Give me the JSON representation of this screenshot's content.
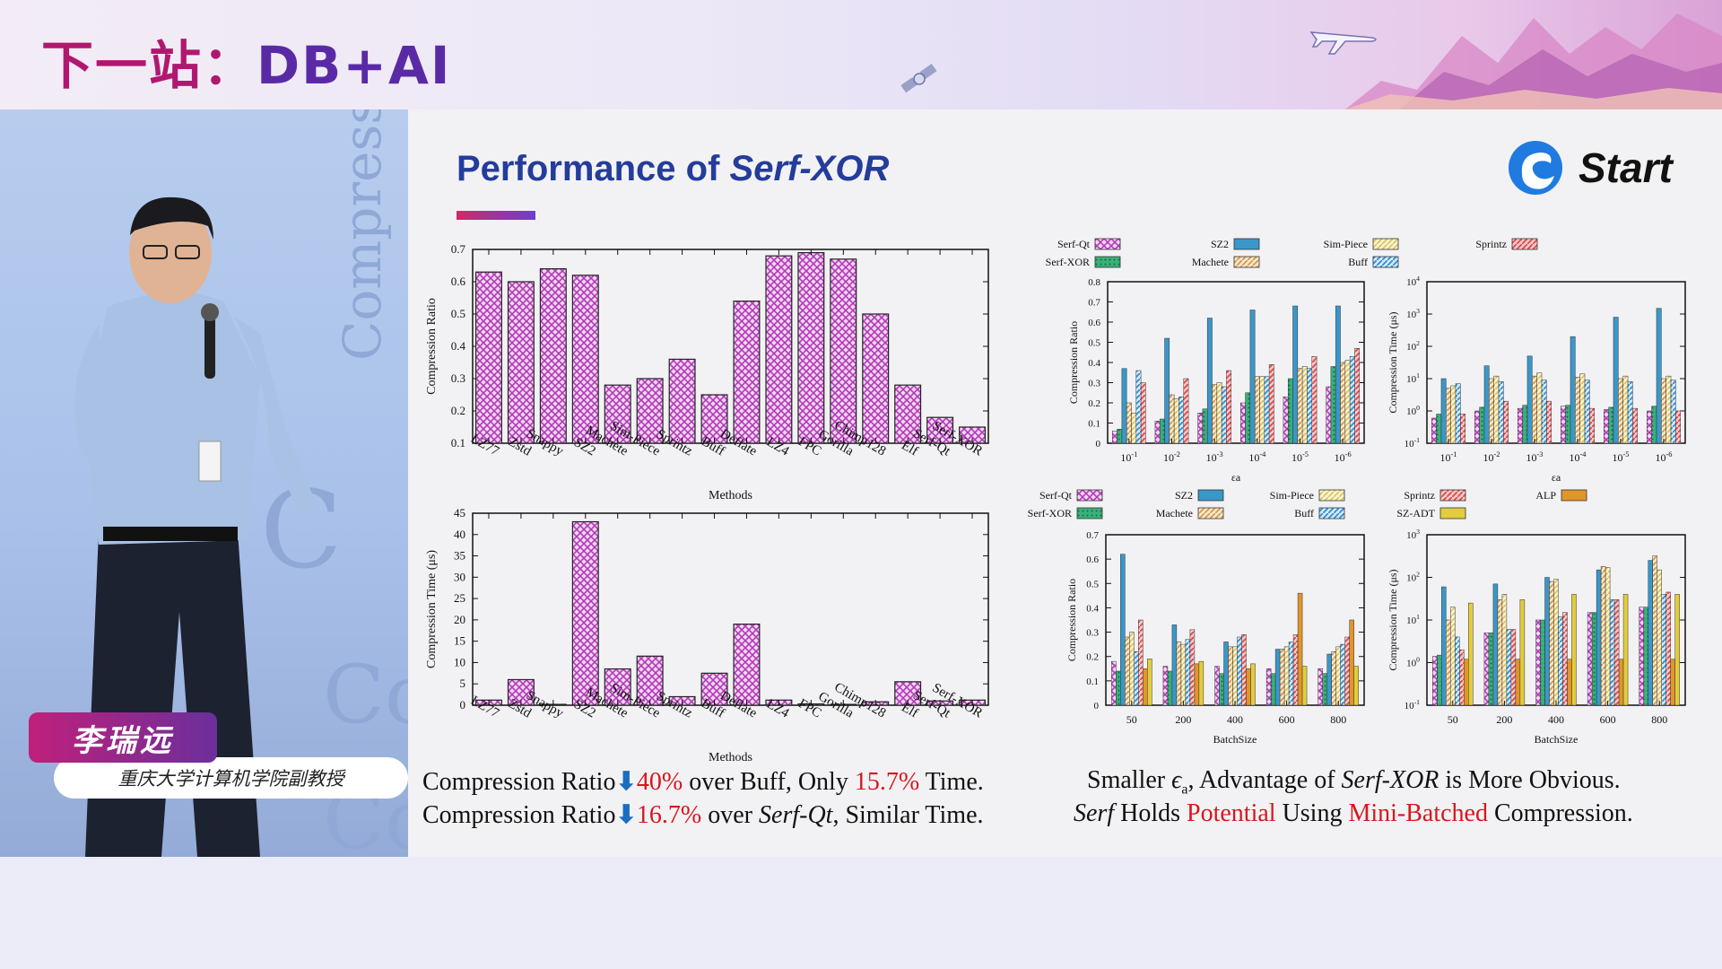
{
  "banner": {
    "title_prefix": "下一站：",
    "title_suffix": "DB+AI"
  },
  "speaker": {
    "name": "李瑞远",
    "title": "重庆大学计算机学院副教授"
  },
  "video": {
    "bg_word": "Compression"
  },
  "slide": {
    "title_prefix": "Performance of ",
    "title_italic": "Serf-XOR",
    "logo_text": "Start"
  },
  "captions": {
    "left1": {
      "a": "Compression Ratio",
      "b": "40%",
      "c": " over Buff, Only ",
      "d": "15.7%",
      "e": " Time."
    },
    "left2": {
      "a": "Compression Ratio",
      "b": "16.7%",
      "c": " over ",
      "d": "Serf-Qt",
      "e": ", Similar Time."
    },
    "right1": {
      "a": "Smaller ",
      "b": "ϵ",
      "b2": "a",
      "c": ", Advantage of ",
      "d": "Serf-XOR",
      "e": " is More Obvious."
    },
    "right2": {
      "a": "Serf",
      "b": " Holds ",
      "c": "Potential",
      "d": " Using ",
      "e": "Mini-Batched",
      "f": " Compression."
    }
  },
  "colors": {
    "magenta": "#b33ab7",
    "blue": "#3a97c9",
    "cream": "#f0e19a",
    "red": "#e0484b",
    "green": "#3ab07a",
    "tan": "#e7b77a",
    "hatchblue": "#2e8fd4",
    "orange": "#e0962b",
    "yellow": "#e3cc3d"
  },
  "chart_data": [
    {
      "type": "bar",
      "id": "ratio-methods",
      "xlabel": "Methods",
      "ylabel": "Compression Ratio",
      "ylim": [
        0.1,
        0.7
      ],
      "yticks": [
        "0.1",
        "0.2",
        "0.3",
        "0.4",
        "0.5",
        "0.6",
        "0.7"
      ],
      "categories": [
        "LZ77",
        "Zstd",
        "Snappy",
        "SZ2",
        "Machete",
        "Sim-Piece",
        "Sprintz",
        "Buff",
        "Deflate",
        "LZ4",
        "FPC",
        "Gorilla",
        "Chimp128",
        "Elf",
        "Serf-Qt",
        "Serf-XOR"
      ],
      "values": [
        0.63,
        0.6,
        0.64,
        0.62,
        0.28,
        0.3,
        0.36,
        0.25,
        0.54,
        0.68,
        0.69,
        0.67,
        0.5,
        0.28,
        0.18,
        0.15
      ]
    },
    {
      "type": "bar",
      "id": "time-methods",
      "xlabel": "Methods",
      "ylabel": "Compression Time (μs)",
      "ylim": [
        0,
        45
      ],
      "yticks": [
        "0",
        "5",
        "10",
        "15",
        "20",
        "25",
        "30",
        "35",
        "40",
        "45"
      ],
      "categories": [
        "LZ77",
        "Zstd",
        "Snappy",
        "SZ2",
        "Machete",
        "Sim-Piece",
        "Sprintz",
        "Buff",
        "Deflate",
        "LZ4",
        "FPC",
        "Gorilla",
        "Chimp128",
        "Elf",
        "Serf-Qt",
        "Serf-XOR"
      ],
      "values": [
        1.2,
        6,
        0.2,
        43,
        8.5,
        11.5,
        2,
        7.5,
        19,
        1.2,
        0.3,
        0.2,
        0.8,
        5.5,
        1,
        1.2
      ]
    },
    {
      "type": "bar",
      "id": "ratio-epsilon",
      "xlabel": "εa",
      "ylabel": "Compression Ratio",
      "ylim": [
        0,
        0.8
      ],
      "yticks": [
        "0",
        "0.1",
        "0.2",
        "0.3",
        "0.4",
        "0.5",
        "0.6",
        "0.7",
        "0.8"
      ],
      "categories": [
        "10-1",
        "10-2",
        "10-3",
        "10-4",
        "10-5",
        "10-6"
      ],
      "legend": [
        {
          "name": "Serf-Qt",
          "color": "magenta",
          "hatch": "cross"
        },
        {
          "name": "SZ2",
          "color": "blue",
          "hatch": "none"
        },
        {
          "name": "Sim-Piece",
          "color": "cream",
          "hatch": "diag"
        },
        {
          "name": "Sprintz",
          "color": "red",
          "hatch": "diag"
        },
        {
          "name": "Serf-XOR",
          "color": "green",
          "hatch": "dots"
        },
        {
          "name": "Machete",
          "color": "tan",
          "hatch": "diag"
        },
        {
          "name": "Buff",
          "color": "hatchblue",
          "hatch": "diag"
        }
      ],
      "series": [
        {
          "name": "Serf-Qt",
          "values": [
            0.06,
            0.11,
            0.15,
            0.2,
            0.23,
            0.28
          ]
        },
        {
          "name": "Serf-XOR",
          "values": [
            0.07,
            0.12,
            0.17,
            0.25,
            0.32,
            0.38
          ]
        },
        {
          "name": "SZ2",
          "values": [
            0.37,
            0.52,
            0.62,
            0.66,
            0.68,
            0.68
          ]
        },
        {
          "name": "Machete",
          "values": [
            0.2,
            0.24,
            0.29,
            0.33,
            0.37,
            0.4
          ]
        },
        {
          "name": "Sim-Piece",
          "values": [
            0.15,
            0.22,
            0.3,
            0.33,
            0.38,
            0.41
          ]
        },
        {
          "name": "Buff",
          "values": [
            0.36,
            0.23,
            0.28,
            0.33,
            0.37,
            0.43
          ]
        },
        {
          "name": "Sprintz",
          "values": [
            0.3,
            0.32,
            0.36,
            0.39,
            0.43,
            0.47
          ]
        }
      ]
    },
    {
      "type": "bar",
      "id": "time-epsilon",
      "xlabel": "εa",
      "ylabel": "Compression Time (μs)",
      "scale": "log",
      "ylim": [
        0.1,
        10000
      ],
      "yticks": [
        "10-1",
        "100",
        "101",
        "102",
        "103",
        "104"
      ],
      "categories": [
        "10-1",
        "10-2",
        "10-3",
        "10-4",
        "10-5",
        "10-6"
      ],
      "series": [
        {
          "name": "Serf-Qt",
          "values": [
            0.6,
            1.0,
            1.2,
            1.4,
            1.1,
            1.0
          ]
        },
        {
          "name": "Serf-XOR",
          "values": [
            0.8,
            1.3,
            1.5,
            1.5,
            1.3,
            1.4
          ]
        },
        {
          "name": "SZ2",
          "values": [
            10,
            25,
            50,
            200,
            800,
            1500
          ]
        },
        {
          "name": "Machete",
          "values": [
            5,
            10,
            12,
            11,
            10,
            10
          ]
        },
        {
          "name": "Sim-Piece",
          "values": [
            6,
            12,
            15,
            14,
            12,
            12
          ]
        },
        {
          "name": "Buff",
          "values": [
            7,
            8,
            9,
            9,
            8,
            9
          ]
        },
        {
          "name": "Sprintz",
          "values": [
            0.8,
            2,
            2,
            1.2,
            1.2,
            1.0
          ]
        }
      ]
    },
    {
      "type": "bar",
      "id": "ratio-batch",
      "xlabel": "BatchSize",
      "ylabel": "Compression Ratio",
      "ylim": [
        0,
        0.7
      ],
      "yticks": [
        "0",
        "0.1",
        "0.2",
        "0.3",
        "0.4",
        "0.5",
        "0.6",
        "0.7"
      ],
      "categories": [
        "50",
        "200",
        "400",
        "600",
        "800"
      ],
      "legend": [
        {
          "name": "Serf-Qt",
          "color": "magenta",
          "hatch": "cross"
        },
        {
          "name": "SZ2",
          "color": "blue",
          "hatch": "none"
        },
        {
          "name": "Sim-Piece",
          "color": "cream",
          "hatch": "diag"
        },
        {
          "name": "Sprintz",
          "color": "red",
          "hatch": "diag"
        },
        {
          "name": "ALP",
          "color": "orange",
          "hatch": "none"
        },
        {
          "name": "Serf-XOR",
          "color": "green",
          "hatch": "dots"
        },
        {
          "name": "Machete",
          "color": "tan",
          "hatch": "diag"
        },
        {
          "name": "Buff",
          "color": "hatchblue",
          "hatch": "diag"
        },
        {
          "name": "SZ-ADT",
          "color": "yellow",
          "hatch": "none"
        }
      ],
      "series": [
        {
          "name": "Serf-Qt",
          "values": [
            0.18,
            0.16,
            0.16,
            0.15,
            0.15
          ]
        },
        {
          "name": "Serf-XOR",
          "values": [
            0.14,
            0.14,
            0.13,
            0.13,
            0.13
          ]
        },
        {
          "name": "SZ2",
          "values": [
            0.62,
            0.33,
            0.26,
            0.23,
            0.21
          ]
        },
        {
          "name": "Machete",
          "values": [
            0.28,
            0.26,
            0.24,
            0.23,
            0.22
          ]
        },
        {
          "name": "Sim-Piece",
          "values": [
            0.3,
            0.25,
            0.24,
            0.24,
            0.24
          ]
        },
        {
          "name": "Buff",
          "values": [
            0.22,
            0.27,
            0.28,
            0.26,
            0.25
          ]
        },
        {
          "name": "Sprintz",
          "values": [
            0.35,
            0.31,
            0.29,
            0.29,
            0.28
          ]
        },
        {
          "name": "ALP",
          "values": [
            0.15,
            0.17,
            0.15,
            0.46,
            0.35
          ]
        },
        {
          "name": "SZ-ADT",
          "values": [
            0.19,
            0.18,
            0.17,
            0.16,
            0.16
          ]
        }
      ]
    },
    {
      "type": "bar",
      "id": "time-batch",
      "xlabel": "BatchSize",
      "ylabel": "Compression Time (μs)",
      "scale": "log",
      "ylim": [
        0.1,
        1000
      ],
      "yticks": [
        "10-1",
        "100",
        "101",
        "102",
        "103"
      ],
      "categories": [
        "50",
        "200",
        "400",
        "600",
        "800"
      ],
      "series": [
        {
          "name": "Serf-Qt",
          "values": [
            1.4,
            5,
            10,
            15,
            20
          ]
        },
        {
          "name": "Serf-XOR",
          "values": [
            1.5,
            5,
            10,
            15,
            20
          ]
        },
        {
          "name": "SZ2",
          "values": [
            60,
            70,
            100,
            150,
            250
          ]
        },
        {
          "name": "Machete",
          "values": [
            10,
            30,
            80,
            180,
            320
          ]
        },
        {
          "name": "Sim-Piece",
          "values": [
            20,
            40,
            90,
            170,
            150
          ]
        },
        {
          "name": "Buff",
          "values": [
            4,
            6,
            12,
            30,
            40
          ]
        },
        {
          "name": "Sprintz",
          "values": [
            2,
            6,
            15,
            30,
            45
          ]
        },
        {
          "name": "ALP",
          "values": [
            1.2,
            1.2,
            1.2,
            1.2,
            1.2
          ]
        },
        {
          "name": "SZ-ADT",
          "values": [
            25,
            30,
            40,
            40,
            40
          ]
        }
      ]
    }
  ]
}
